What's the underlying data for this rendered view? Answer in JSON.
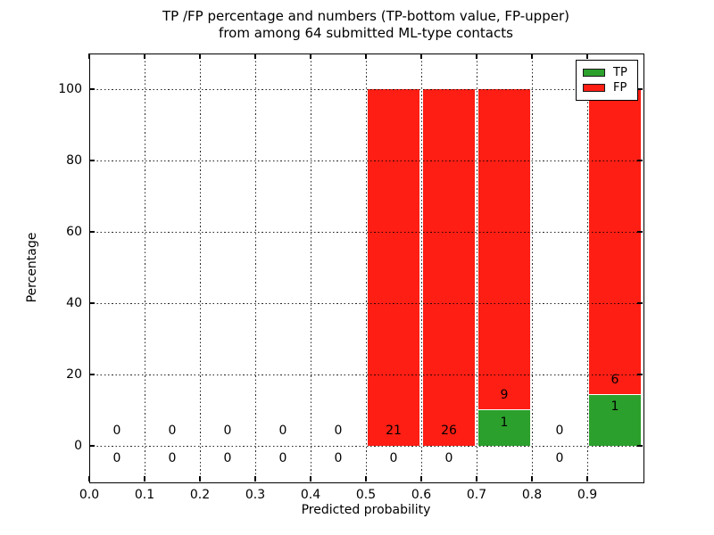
{
  "chart_data": {
    "type": "bar",
    "stacked": true,
    "title_lines": [
      "TP /FP percentage and numbers (TP-bottom value, FP-upper)",
      "from among 64 submitted ML-type contacts"
    ],
    "xlabel": "Predicted probability",
    "ylabel": "Percentage",
    "xlim": [
      0.0,
      1.0
    ],
    "ylim": [
      -10,
      110
    ],
    "xtick_values": [
      0.0,
      0.1,
      0.2,
      0.3,
      0.4,
      0.5,
      0.6,
      0.7,
      0.8,
      0.9
    ],
    "xtick_labels": [
      "0.0",
      "0.1",
      "0.2",
      "0.3",
      "0.4",
      "0.5",
      "0.6",
      "0.7",
      "0.8",
      "0.9"
    ],
    "ytick_values": [
      0,
      20,
      40,
      60,
      80,
      100
    ],
    "ytick_labels": [
      "0",
      "20",
      "40",
      "60",
      "80",
      "100"
    ],
    "grid": {
      "style": "dotted",
      "color": "#000000",
      "above_bars": true
    },
    "bar_width": 0.095,
    "series": [
      {
        "name": "TP",
        "color": "#2ca02c"
      },
      {
        "name": "FP",
        "color": "#fe1e14"
      }
    ],
    "bins": [
      {
        "x_center": 0.05,
        "tp_count": 0,
        "fp_count": 0,
        "tp_pct": 0,
        "fp_pct": 0
      },
      {
        "x_center": 0.15,
        "tp_count": 0,
        "fp_count": 0,
        "tp_pct": 0,
        "fp_pct": 0
      },
      {
        "x_center": 0.25,
        "tp_count": 0,
        "fp_count": 0,
        "tp_pct": 0,
        "fp_pct": 0
      },
      {
        "x_center": 0.35,
        "tp_count": 0,
        "fp_count": 0,
        "tp_pct": 0,
        "fp_pct": 0
      },
      {
        "x_center": 0.45,
        "tp_count": 0,
        "fp_count": 0,
        "tp_pct": 0,
        "fp_pct": 0
      },
      {
        "x_center": 0.55,
        "tp_count": 0,
        "fp_count": 21,
        "tp_pct": 0,
        "fp_pct": 100
      },
      {
        "x_center": 0.65,
        "tp_count": 0,
        "fp_count": 26,
        "tp_pct": 0,
        "fp_pct": 100
      },
      {
        "x_center": 0.75,
        "tp_count": 1,
        "fp_count": 9,
        "tp_pct": 10,
        "fp_pct": 90
      },
      {
        "x_center": 0.85,
        "tp_count": 0,
        "fp_count": 0,
        "tp_pct": 0,
        "fp_pct": 0
      },
      {
        "x_center": 0.95,
        "tp_count": 1,
        "fp_count": 6,
        "tp_pct": 14.3,
        "fp_pct": 85.7
      }
    ],
    "legend": {
      "position": "upper right",
      "entries": [
        {
          "label": "TP",
          "color": "#2ca02c"
        },
        {
          "label": "FP",
          "color": "#fe1e14"
        }
      ]
    }
  }
}
